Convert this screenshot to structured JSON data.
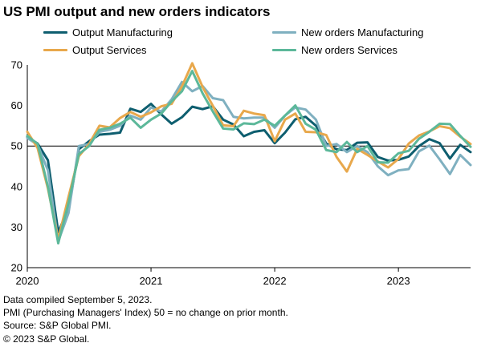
{
  "colors": {
    "output_manufacturing": "#0e5e6f",
    "new_orders_manufacturing": "#7fb0c0",
    "output_services": "#e8a84c",
    "new_orders_services": "#5cb89a",
    "axis": "#000000"
  },
  "chart_data": {
    "type": "line",
    "title": "US PMI output and new orders indicators",
    "xlabel": "",
    "ylabel": "",
    "ylim": [
      20,
      70
    ],
    "yticks": [
      20,
      30,
      40,
      50,
      60,
      70
    ],
    "reference_line": 50,
    "grid": false,
    "legend_position": "top",
    "x_start": "2020-01",
    "x_end": "2023-08",
    "x_tick_labels": [
      "2020",
      "2021",
      "2022",
      "2023"
    ],
    "x_tick_positions": [
      "2020-01",
      "2021-01",
      "2022-01",
      "2023-01"
    ],
    "x": [
      "2020-01",
      "2020-02",
      "2020-03",
      "2020-04",
      "2020-05",
      "2020-06",
      "2020-07",
      "2020-08",
      "2020-09",
      "2020-10",
      "2020-11",
      "2020-12",
      "2021-01",
      "2021-02",
      "2021-03",
      "2021-04",
      "2021-05",
      "2021-06",
      "2021-07",
      "2021-08",
      "2021-09",
      "2021-10",
      "2021-11",
      "2021-12",
      "2022-01",
      "2022-02",
      "2022-03",
      "2022-04",
      "2022-05",
      "2022-06",
      "2022-07",
      "2022-08",
      "2022-09",
      "2022-10",
      "2022-11",
      "2022-12",
      "2023-01",
      "2023-02",
      "2023-03",
      "2023-04",
      "2023-05",
      "2023-06",
      "2023-07",
      "2023-08"
    ],
    "series": [
      {
        "name": "Output Manufacturing",
        "color_key": "output_manufacturing",
        "values": [
          52.2,
          50.6,
          46.5,
          28.8,
          34.5,
          49.2,
          51.2,
          52.8,
          53.0,
          53.3,
          59.2,
          58.4,
          60.4,
          57.8,
          55.5,
          57.1,
          59.7,
          59.1,
          59.8,
          56.5,
          55.3,
          52.4,
          53.5,
          53.9,
          50.7,
          53.3,
          56.6,
          57.2,
          55.0,
          50.6,
          49.2,
          49.0,
          50.8,
          50.9,
          47.3,
          46.4,
          46.6,
          47.4,
          50.0,
          51.7,
          50.7,
          46.9,
          50.3,
          48.5
        ]
      },
      {
        "name": "New orders Manufacturing",
        "color_key": "new_orders_manufacturing",
        "values": [
          52.0,
          50.3,
          44.0,
          26.5,
          33.5,
          50.0,
          50.5,
          53.5,
          54.0,
          55.0,
          57.5,
          56.5,
          59.5,
          58.5,
          61.5,
          65.8,
          63.5,
          64.8,
          61.8,
          61.3,
          57.2,
          56.8,
          57.0,
          57.0,
          54.5,
          57.5,
          59.5,
          59.0,
          56.5,
          50.0,
          50.5,
          48.5,
          50.0,
          48.5,
          45.0,
          42.8,
          44.0,
          44.3,
          48.7,
          50.1,
          46.7,
          43.1,
          47.8,
          45.3
        ]
      },
      {
        "name": "Output Services",
        "color_key": "output_services",
        "values": [
          53.5,
          49.5,
          39.5,
          27.0,
          37.5,
          47.5,
          50.5,
          55.0,
          54.6,
          56.9,
          58.4,
          57.2,
          58.3,
          59.8,
          60.4,
          64.7,
          70.4,
          64.6,
          59.9,
          55.1,
          54.9,
          58.7,
          58.0,
          57.6,
          51.2,
          56.5,
          58.0,
          53.5,
          53.4,
          52.7,
          47.3,
          43.7,
          49.3,
          47.8,
          46.2,
          44.7,
          46.8,
          50.6,
          52.6,
          53.6,
          54.9,
          54.4,
          52.3,
          50.5
        ]
      },
      {
        "name": "New orders Services",
        "color_key": "new_orders_services",
        "values": [
          52.5,
          50.5,
          40.0,
          26.0,
          36.0,
          48.0,
          50.0,
          54.0,
          54.5,
          55.5,
          57.0,
          54.5,
          56.5,
          58.0,
          61.0,
          63.5,
          68.5,
          63.0,
          58.5,
          54.3,
          54.1,
          55.6,
          55.4,
          56.5,
          55.0,
          57.5,
          60.0,
          55.5,
          54.0,
          49.0,
          48.5,
          51.0,
          48.5,
          50.0,
          46.0,
          45.9,
          48.2,
          48.8,
          51.8,
          53.5,
          55.5,
          55.4,
          52.5,
          49.8
        ]
      }
    ]
  },
  "legend": [
    {
      "label": "Output Manufacturing",
      "color_key": "output_manufacturing"
    },
    {
      "label": "New orders Manufacturing",
      "color_key": "new_orders_manufacturing"
    },
    {
      "label": "Output Services",
      "color_key": "output_services"
    },
    {
      "label": "New orders Services",
      "color_key": "new_orders_services"
    }
  ],
  "notes": [
    "Data compiled September 5, 2023.",
    "PMI (Purchasing Managers' Index) 50 =  no change on prior month.",
    "Source: S&P Global PMI.",
    "© 2023 S&P Global."
  ]
}
